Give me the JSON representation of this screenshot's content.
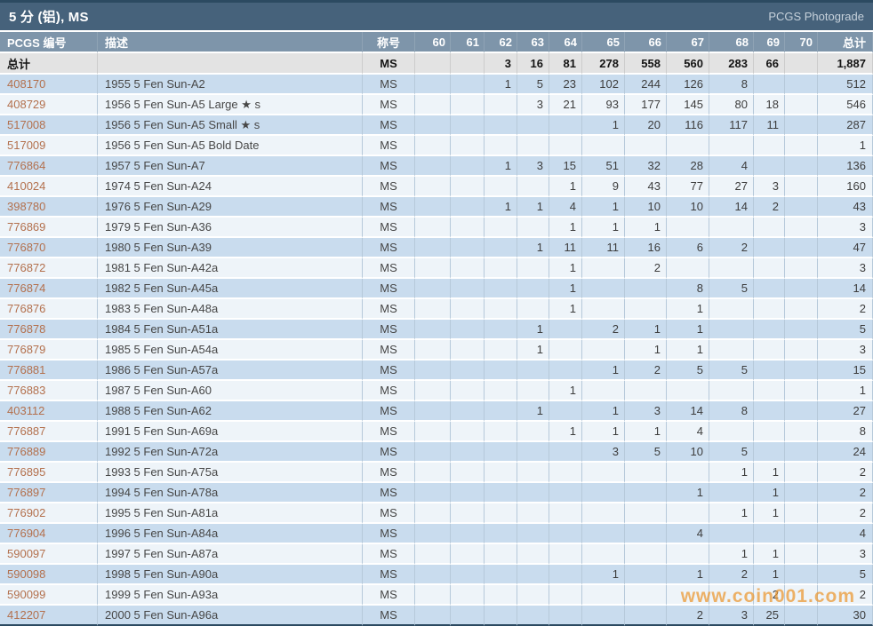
{
  "window": {
    "title": "5 分 (铝), MS",
    "photograde_link": "PCGS Photograde"
  },
  "watermark": "www.coin001.com",
  "colors": {
    "titlebar_bg": "#46627b",
    "header_bg": "#7e95aa",
    "row_blue": "#c9dcee",
    "row_light": "#eef4f9",
    "totals_bg": "#e3e3e3",
    "link_color": "#b3704d",
    "watermark_color": "#eb962d"
  },
  "table": {
    "columns": [
      "PCGS 编号",
      "描述",
      "称号",
      "60",
      "61",
      "62",
      "63",
      "64",
      "65",
      "66",
      "67",
      "68",
      "69",
      "70",
      "总计"
    ],
    "totals": {
      "label": "总计",
      "description": "",
      "designation": "MS",
      "counts": [
        "",
        "",
        "3",
        "16",
        "81",
        "278",
        "558",
        "560",
        "283",
        "66",
        ""
      ],
      "total": "1,887"
    },
    "rows": [
      {
        "pcgs": "408170",
        "description": "1955 5 Fen Sun-A2",
        "designation": "MS",
        "counts": [
          "",
          "",
          "1",
          "5",
          "23",
          "102",
          "244",
          "126",
          "8",
          "",
          ""
        ],
        "total": "512"
      },
      {
        "pcgs": "408729",
        "description": "1956 5 Fen Sun-A5 Large ★ s",
        "designation": "MS",
        "counts": [
          "",
          "",
          "",
          "3",
          "21",
          "93",
          "177",
          "145",
          "80",
          "18",
          ""
        ],
        "total": "546"
      },
      {
        "pcgs": "517008",
        "description": "1956 5 Fen Sun-A5 Small ★ s",
        "designation": "MS",
        "counts": [
          "",
          "",
          "",
          "",
          "",
          "1",
          "20",
          "116",
          "117",
          "11",
          ""
        ],
        "total": "287"
      },
      {
        "pcgs": "517009",
        "description": "1956 5 Fen Sun-A5 Bold Date",
        "designation": "MS",
        "counts": [
          "",
          "",
          "",
          "",
          "",
          "",
          "",
          "",
          "",
          "",
          ""
        ],
        "total": "1"
      },
      {
        "pcgs": "776864",
        "description": "1957 5 Fen Sun-A7",
        "designation": "MS",
        "counts": [
          "",
          "",
          "1",
          "3",
          "15",
          "51",
          "32",
          "28",
          "4",
          "",
          ""
        ],
        "total": "136"
      },
      {
        "pcgs": "410024",
        "description": "1974 5 Fen Sun-A24",
        "designation": "MS",
        "counts": [
          "",
          "",
          "",
          "",
          "1",
          "9",
          "43",
          "77",
          "27",
          "3",
          ""
        ],
        "total": "160"
      },
      {
        "pcgs": "398780",
        "description": "1976 5 Fen Sun-A29",
        "designation": "MS",
        "counts": [
          "",
          "",
          "1",
          "1",
          "4",
          "1",
          "10",
          "10",
          "14",
          "2",
          ""
        ],
        "total": "43"
      },
      {
        "pcgs": "776869",
        "description": "1979 5 Fen Sun-A36",
        "designation": "MS",
        "counts": [
          "",
          "",
          "",
          "",
          "1",
          "1",
          "1",
          "",
          "",
          "",
          ""
        ],
        "total": "3"
      },
      {
        "pcgs": "776870",
        "description": "1980 5 Fen Sun-A39",
        "designation": "MS",
        "counts": [
          "",
          "",
          "",
          "1",
          "11",
          "11",
          "16",
          "6",
          "2",
          "",
          ""
        ],
        "total": "47"
      },
      {
        "pcgs": "776872",
        "description": "1981 5 Fen Sun-A42a",
        "designation": "MS",
        "counts": [
          "",
          "",
          "",
          "",
          "1",
          "",
          "2",
          "",
          "",
          "",
          ""
        ],
        "total": "3"
      },
      {
        "pcgs": "776874",
        "description": "1982 5 Fen Sun-A45a",
        "designation": "MS",
        "counts": [
          "",
          "",
          "",
          "",
          "1",
          "",
          "",
          "8",
          "5",
          "",
          ""
        ],
        "total": "14"
      },
      {
        "pcgs": "776876",
        "description": "1983 5 Fen Sun-A48a",
        "designation": "MS",
        "counts": [
          "",
          "",
          "",
          "",
          "1",
          "",
          "",
          "1",
          "",
          "",
          ""
        ],
        "total": "2"
      },
      {
        "pcgs": "776878",
        "description": "1984 5 Fen Sun-A51a",
        "designation": "MS",
        "counts": [
          "",
          "",
          "",
          "1",
          "",
          "2",
          "1",
          "1",
          "",
          "",
          ""
        ],
        "total": "5"
      },
      {
        "pcgs": "776879",
        "description": "1985 5 Fen Sun-A54a",
        "designation": "MS",
        "counts": [
          "",
          "",
          "",
          "1",
          "",
          "",
          "1",
          "1",
          "",
          "",
          ""
        ],
        "total": "3"
      },
      {
        "pcgs": "776881",
        "description": "1986 5 Fen Sun-A57a",
        "designation": "MS",
        "counts": [
          "",
          "",
          "",
          "",
          "",
          "1",
          "2",
          "5",
          "5",
          "",
          ""
        ],
        "total": "15"
      },
      {
        "pcgs": "776883",
        "description": "1987 5 Fen Sun-A60",
        "designation": "MS",
        "counts": [
          "",
          "",
          "",
          "",
          "1",
          "",
          "",
          "",
          "",
          "",
          ""
        ],
        "total": "1"
      },
      {
        "pcgs": "403112",
        "description": "1988 5 Fen Sun-A62",
        "designation": "MS",
        "counts": [
          "",
          "",
          "",
          "1",
          "",
          "1",
          "3",
          "14",
          "8",
          "",
          ""
        ],
        "total": "27"
      },
      {
        "pcgs": "776887",
        "description": "1991 5 Fen Sun-A69a",
        "designation": "MS",
        "counts": [
          "",
          "",
          "",
          "",
          "1",
          "1",
          "1",
          "4",
          "",
          "",
          ""
        ],
        "total": "8"
      },
      {
        "pcgs": "776889",
        "description": "1992 5 Fen Sun-A72a",
        "designation": "MS",
        "counts": [
          "",
          "",
          "",
          "",
          "",
          "3",
          "5",
          "10",
          "5",
          "",
          ""
        ],
        "total": "24"
      },
      {
        "pcgs": "776895",
        "description": "1993 5 Fen Sun-A75a",
        "designation": "MS",
        "counts": [
          "",
          "",
          "",
          "",
          "",
          "",
          "",
          "",
          "1",
          "1",
          ""
        ],
        "total": "2"
      },
      {
        "pcgs": "776897",
        "description": "1994 5 Fen Sun-A78a",
        "designation": "MS",
        "counts": [
          "",
          "",
          "",
          "",
          "",
          "",
          "",
          "1",
          "",
          "1",
          ""
        ],
        "total": "2"
      },
      {
        "pcgs": "776902",
        "description": "1995 5 Fen Sun-A81a",
        "designation": "MS",
        "counts": [
          "",
          "",
          "",
          "",
          "",
          "",
          "",
          "",
          "1",
          "1",
          ""
        ],
        "total": "2"
      },
      {
        "pcgs": "776904",
        "description": "1996 5 Fen Sun-A84a",
        "designation": "MS",
        "counts": [
          "",
          "",
          "",
          "",
          "",
          "",
          "",
          "4",
          "",
          "",
          ""
        ],
        "total": "4"
      },
      {
        "pcgs": "590097",
        "description": "1997 5 Fen Sun-A87a",
        "designation": "MS",
        "counts": [
          "",
          "",
          "",
          "",
          "",
          "",
          "",
          "",
          "1",
          "1",
          ""
        ],
        "total": "3"
      },
      {
        "pcgs": "590098",
        "description": "1998 5 Fen Sun-A90a",
        "designation": "MS",
        "counts": [
          "",
          "",
          "",
          "",
          "",
          "1",
          "",
          "1",
          "2",
          "1",
          ""
        ],
        "total": "5"
      },
      {
        "pcgs": "590099",
        "description": "1999 5 Fen Sun-A93a",
        "designation": "MS",
        "counts": [
          "",
          "",
          "",
          "",
          "",
          "",
          "",
          "",
          "",
          "2",
          ""
        ],
        "total": "2"
      },
      {
        "pcgs": "412207",
        "description": "2000 5 Fen Sun-A96a",
        "designation": "MS",
        "counts": [
          "",
          "",
          "",
          "",
          "",
          "",
          "",
          "2",
          "3",
          "25",
          ""
        ],
        "total": "30"
      }
    ]
  }
}
